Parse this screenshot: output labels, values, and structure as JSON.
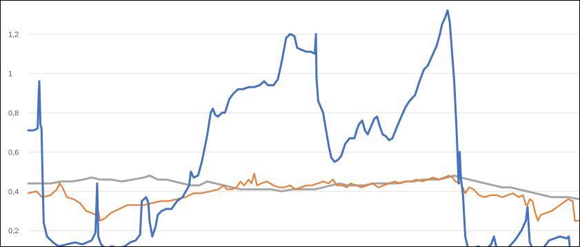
{
  "chart_data": {
    "type": "line",
    "title": "",
    "xlabel": "",
    "ylabel": "",
    "ylim": [
      0.12,
      1.37
    ],
    "y_ticks": [
      0.2,
      0.4,
      0.6,
      0.8,
      1.0,
      1.2
    ],
    "y_tick_labels": [
      "0,2",
      "0,4",
      "0,6",
      "0,8",
      "1",
      "1,2"
    ],
    "xlim": [
      0,
      100
    ],
    "grid": "horizontal",
    "legend": "none",
    "series": [
      {
        "color": "#4472C4",
        "points": [
          [
            0,
            0.71
          ],
          [
            1.0,
            0.71
          ],
          [
            1.7,
            0.72
          ],
          [
            1.9,
            0.9
          ],
          [
            2.0,
            0.96
          ],
          [
            2.2,
            0.74
          ],
          [
            2.4,
            0.72
          ],
          [
            2.6,
            0.46
          ],
          [
            2.8,
            0.24
          ],
          [
            3.4,
            0.17
          ],
          [
            4.5,
            0.14
          ],
          [
            5.5,
            0.12
          ],
          [
            7.0,
            0.13
          ],
          [
            8.5,
            0.14
          ],
          [
            9.8,
            0.13
          ],
          [
            11.5,
            0.15
          ],
          [
            12.2,
            0.19
          ],
          [
            12.5,
            0.44
          ],
          [
            12.7,
            0.17
          ],
          [
            13.2,
            0.13
          ],
          [
            14.0,
            0.11
          ],
          [
            15.2,
            0.12
          ],
          [
            16.3,
            0.11
          ],
          [
            17.5,
            0.12
          ],
          [
            18.5,
            0.14
          ],
          [
            19.5,
            0.15
          ],
          [
            20.3,
            0.18
          ],
          [
            20.6,
            0.35
          ],
          [
            21.4,
            0.37
          ],
          [
            21.8,
            0.34
          ],
          [
            22.0,
            0.25
          ],
          [
            22.5,
            0.17
          ],
          [
            23.1,
            0.22
          ],
          [
            23.5,
            0.28
          ],
          [
            24.2,
            0.3
          ],
          [
            25.0,
            0.31
          ],
          [
            26.0,
            0.31
          ],
          [
            27.0,
            0.35
          ],
          [
            28.0,
            0.37
          ],
          [
            28.6,
            0.4
          ],
          [
            29.2,
            0.43
          ],
          [
            29.5,
            0.5
          ],
          [
            30.0,
            0.47
          ],
          [
            30.8,
            0.48
          ],
          [
            31.5,
            0.55
          ],
          [
            32.5,
            0.69
          ],
          [
            33.1,
            0.8
          ],
          [
            33.5,
            0.82
          ],
          [
            33.9,
            0.79
          ],
          [
            34.4,
            0.78
          ],
          [
            35.2,
            0.8
          ],
          [
            35.7,
            0.8
          ],
          [
            36.5,
            0.87
          ],
          [
            37.3,
            0.9
          ],
          [
            38.1,
            0.92
          ],
          [
            39.0,
            0.92
          ],
          [
            40.0,
            0.93
          ],
          [
            41.0,
            0.93
          ],
          [
            42.0,
            0.94
          ],
          [
            42.8,
            0.96
          ],
          [
            43.5,
            0.94
          ],
          [
            44.5,
            0.94
          ],
          [
            45.3,
            0.97
          ],
          [
            46.0,
            1.06
          ],
          [
            46.8,
            1.18
          ],
          [
            47.5,
            1.2
          ],
          [
            48.3,
            1.19
          ],
          [
            48.8,
            1.13
          ],
          [
            49.6,
            1.12
          ],
          [
            50.5,
            1.11
          ],
          [
            51.3,
            1.11
          ],
          [
            52.0,
            1.1
          ],
          [
            52.2,
            1.2
          ],
          [
            52.3,
            0.98
          ],
          [
            52.6,
            0.86
          ],
          [
            53.5,
            0.8
          ],
          [
            54.1,
            0.7
          ],
          [
            54.6,
            0.62
          ],
          [
            55.0,
            0.57
          ],
          [
            55.6,
            0.55
          ],
          [
            56.2,
            0.56
          ],
          [
            56.8,
            0.58
          ],
          [
            57.5,
            0.64
          ],
          [
            58.3,
            0.67
          ],
          [
            59.2,
            0.67
          ],
          [
            59.6,
            0.71
          ],
          [
            60.0,
            0.74
          ],
          [
            60.6,
            0.76
          ],
          [
            61.1,
            0.71
          ],
          [
            61.6,
            0.69
          ],
          [
            62.2,
            0.73
          ],
          [
            62.8,
            0.77
          ],
          [
            63.3,
            0.78
          ],
          [
            63.8,
            0.73
          ],
          [
            64.3,
            0.69
          ],
          [
            64.9,
            0.68
          ],
          [
            65.5,
            0.66
          ],
          [
            66.1,
            0.67
          ],
          [
            66.8,
            0.72
          ],
          [
            67.7,
            0.78
          ],
          [
            68.5,
            0.83
          ],
          [
            69.2,
            0.86
          ],
          [
            70.2,
            0.89
          ],
          [
            71.0,
            0.96
          ],
          [
            71.8,
            1.02
          ],
          [
            72.5,
            1.04
          ],
          [
            73.3,
            1.09
          ],
          [
            74.1,
            1.14
          ],
          [
            74.7,
            1.2
          ],
          [
            75.1,
            1.25
          ],
          [
            75.6,
            1.28
          ],
          [
            76.1,
            1.32
          ],
          [
            76.5,
            1.26
          ],
          [
            76.9,
            1.11
          ],
          [
            77.3,
            0.96
          ],
          [
            77.7,
            0.73
          ],
          [
            78.0,
            0.52
          ],
          [
            78.1,
            0.44
          ],
          [
            78.3,
            0.6
          ],
          [
            78.5,
            0.47
          ],
          [
            78.9,
            0.38
          ],
          [
            79.3,
            0.17
          ],
          [
            79.8,
            0.11
          ],
          [
            80.6,
            0.11
          ],
          [
            81.7,
            0.12
          ],
          [
            82.8,
            0.1
          ],
          [
            84.0,
            0.13
          ],
          [
            84.5,
            0.17
          ],
          [
            84.9,
            0.12
          ],
          [
            85.8,
            0.1
          ],
          [
            87.0,
            0.11
          ],
          [
            88.3,
            0.15
          ],
          [
            89.5,
            0.2
          ],
          [
            90.3,
            0.25
          ],
          [
            90.6,
            0.32
          ],
          [
            91.0,
            0.14
          ],
          [
            91.5,
            0.11
          ],
          [
            92.8,
            0.1
          ],
          [
            93.7,
            0.12
          ],
          [
            94.5,
            0.15
          ],
          [
            95.5,
            0.16
          ],
          [
            96.5,
            0.17
          ],
          [
            97.7,
            0.16
          ],
          [
            98.1,
            0.17
          ],
          [
            98.3,
            0.11
          ],
          [
            99.0,
            0.1
          ],
          [
            100,
            0.1
          ]
        ]
      },
      {
        "color": "#ED7D31",
        "points": [
          [
            0,
            0.39
          ],
          [
            1.5,
            0.4
          ],
          [
            2.5,
            0.37
          ],
          [
            4.0,
            0.38
          ],
          [
            5.2,
            0.41
          ],
          [
            5.7,
            0.44
          ],
          [
            6.2,
            0.42
          ],
          [
            7.0,
            0.37
          ],
          [
            8.2,
            0.36
          ],
          [
            9.4,
            0.34
          ],
          [
            10.5,
            0.3
          ],
          [
            11.5,
            0.29
          ],
          [
            12.2,
            0.28
          ],
          [
            12.7,
            0.3
          ],
          [
            13.0,
            0.25
          ],
          [
            13.8,
            0.26
          ],
          [
            15.0,
            0.29
          ],
          [
            16.5,
            0.31
          ],
          [
            18.0,
            0.33
          ],
          [
            19.5,
            0.33
          ],
          [
            21.0,
            0.33
          ],
          [
            22.5,
            0.34
          ],
          [
            24.0,
            0.35
          ],
          [
            25.5,
            0.35
          ],
          [
            27.0,
            0.36
          ],
          [
            28.5,
            0.37
          ],
          [
            30.0,
            0.39
          ],
          [
            31.5,
            0.39
          ],
          [
            33.0,
            0.4
          ],
          [
            34.5,
            0.41
          ],
          [
            35.5,
            0.43
          ],
          [
            36.0,
            0.41
          ],
          [
            37.0,
            0.41
          ],
          [
            37.8,
            0.42
          ],
          [
            38.5,
            0.45
          ],
          [
            39.2,
            0.43
          ],
          [
            40.0,
            0.46
          ],
          [
            40.5,
            0.44
          ],
          [
            41.0,
            0.49
          ],
          [
            41.5,
            0.43
          ],
          [
            42.3,
            0.44
          ],
          [
            43.3,
            0.45
          ],
          [
            44.5,
            0.43
          ],
          [
            45.5,
            0.42
          ],
          [
            46.5,
            0.42
          ],
          [
            47.5,
            0.43
          ],
          [
            48.5,
            0.41
          ],
          [
            49.5,
            0.42
          ],
          [
            50.5,
            0.43
          ],
          [
            51.5,
            0.43
          ],
          [
            52.5,
            0.44
          ],
          [
            53.5,
            0.45
          ],
          [
            54.5,
            0.44
          ],
          [
            55.3,
            0.46
          ],
          [
            56.0,
            0.43
          ],
          [
            57.0,
            0.43
          ],
          [
            57.8,
            0.42
          ],
          [
            58.5,
            0.44
          ],
          [
            59.5,
            0.43
          ],
          [
            60.5,
            0.42
          ],
          [
            61.5,
            0.43
          ],
          [
            62.5,
            0.44
          ],
          [
            63.5,
            0.42
          ],
          [
            64.5,
            0.43
          ],
          [
            65.5,
            0.44
          ],
          [
            66.5,
            0.45
          ],
          [
            67.5,
            0.44
          ],
          [
            68.5,
            0.45
          ],
          [
            69.5,
            0.45
          ],
          [
            70.5,
            0.46
          ],
          [
            71.5,
            0.45
          ],
          [
            72.5,
            0.46
          ],
          [
            73.5,
            0.47
          ],
          [
            74.5,
            0.46
          ],
          [
            75.5,
            0.47
          ],
          [
            76.3,
            0.48
          ],
          [
            77.0,
            0.47
          ],
          [
            77.5,
            0.45
          ],
          [
            78.5,
            0.44
          ],
          [
            79.3,
            0.39
          ],
          [
            80.0,
            0.42
          ],
          [
            80.8,
            0.41
          ],
          [
            81.8,
            0.38
          ],
          [
            82.8,
            0.37
          ],
          [
            83.8,
            0.38
          ],
          [
            85.0,
            0.38
          ],
          [
            86.0,
            0.37
          ],
          [
            87.0,
            0.38
          ],
          [
            88.0,
            0.39
          ],
          [
            89.0,
            0.37
          ],
          [
            89.8,
            0.38
          ],
          [
            90.3,
            0.33
          ],
          [
            90.6,
            0.33
          ],
          [
            91.0,
            0.36
          ],
          [
            91.5,
            0.35
          ],
          [
            92.0,
            0.29
          ],
          [
            92.5,
            0.25
          ],
          [
            93.0,
            0.28
          ],
          [
            94.0,
            0.29
          ],
          [
            95.0,
            0.3
          ],
          [
            96.0,
            0.32
          ],
          [
            97.0,
            0.34
          ],
          [
            98.0,
            0.36
          ],
          [
            98.8,
            0.35
          ],
          [
            99.2,
            0.25
          ],
          [
            100,
            0.25
          ]
        ]
      },
      {
        "color": "#A5A5A5",
        "points": [
          [
            0,
            0.44
          ],
          [
            2.0,
            0.44
          ],
          [
            4.0,
            0.44
          ],
          [
            6.0,
            0.45
          ],
          [
            8.0,
            0.45
          ],
          [
            10.0,
            0.46
          ],
          [
            11.5,
            0.47
          ],
          [
            13.0,
            0.46
          ],
          [
            15.0,
            0.46
          ],
          [
            17.0,
            0.45
          ],
          [
            19.0,
            0.46
          ],
          [
            21.0,
            0.47
          ],
          [
            22.0,
            0.48
          ],
          [
            23.5,
            0.46
          ],
          [
            25.0,
            0.46
          ],
          [
            26.5,
            0.45
          ],
          [
            28.0,
            0.44
          ],
          [
            29.5,
            0.43
          ],
          [
            31.0,
            0.43
          ],
          [
            32.5,
            0.45
          ],
          [
            34.0,
            0.44
          ],
          [
            35.5,
            0.43
          ],
          [
            37.0,
            0.42
          ],
          [
            38.5,
            0.41
          ],
          [
            40.0,
            0.41
          ],
          [
            42.0,
            0.41
          ],
          [
            44.0,
            0.41
          ],
          [
            46.0,
            0.4
          ],
          [
            48.0,
            0.41
          ],
          [
            50.0,
            0.41
          ],
          [
            52.0,
            0.41
          ],
          [
            53.5,
            0.42
          ],
          [
            55.0,
            0.43
          ],
          [
            56.5,
            0.44
          ],
          [
            58.0,
            0.43
          ],
          [
            59.5,
            0.43
          ],
          [
            61.0,
            0.43
          ],
          [
            62.5,
            0.44
          ],
          [
            64.0,
            0.44
          ],
          [
            65.5,
            0.44
          ],
          [
            67.0,
            0.44
          ],
          [
            68.5,
            0.45
          ],
          [
            70.0,
            0.45
          ],
          [
            71.5,
            0.46
          ],
          [
            73.0,
            0.46
          ],
          [
            74.5,
            0.46
          ],
          [
            76.0,
            0.47
          ],
          [
            77.3,
            0.48
          ],
          [
            78.5,
            0.47
          ],
          [
            80.0,
            0.46
          ],
          [
            81.5,
            0.45
          ],
          [
            83.0,
            0.44
          ],
          [
            84.5,
            0.43
          ],
          [
            86.0,
            0.42
          ],
          [
            87.5,
            0.42
          ],
          [
            89.0,
            0.41
          ],
          [
            90.5,
            0.4
          ],
          [
            92.0,
            0.39
          ],
          [
            93.5,
            0.38
          ],
          [
            95.0,
            0.37
          ],
          [
            96.5,
            0.37
          ],
          [
            98.0,
            0.37
          ],
          [
            100,
            0.36
          ]
        ]
      }
    ]
  }
}
